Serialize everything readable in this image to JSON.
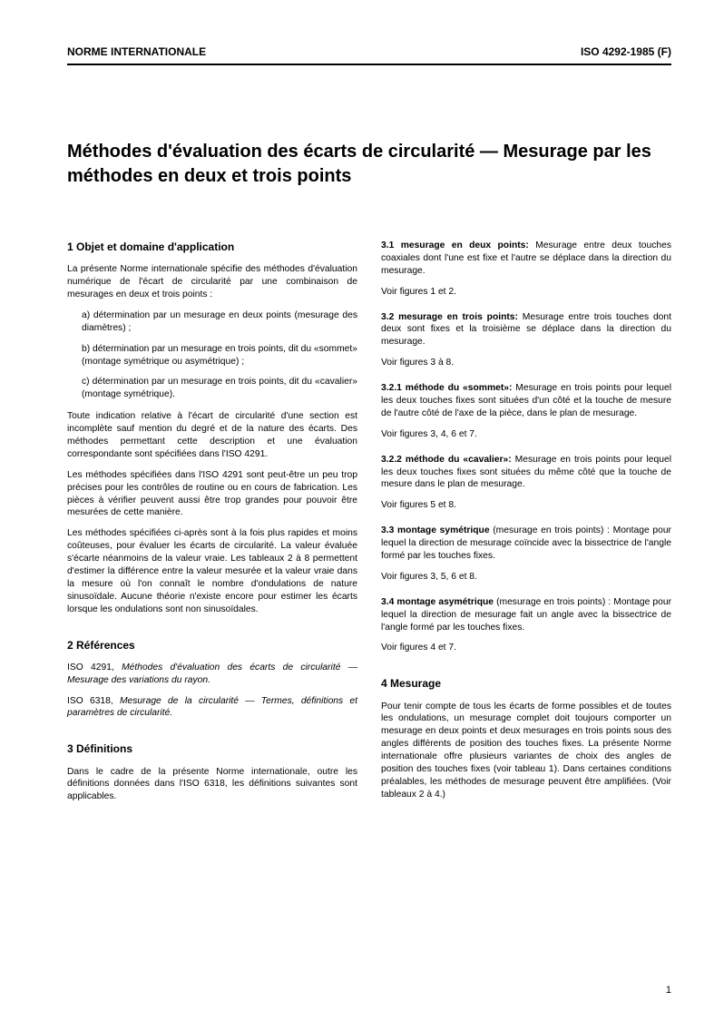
{
  "header": {
    "left": "NORME INTERNATIONALE",
    "right": "ISO 4292-1985 (F)"
  },
  "main_title": "Méthodes d'évaluation des écarts de circularité — Mesurage par les méthodes en deux et trois points",
  "left_col": {
    "section1": {
      "heading": "1   Objet et domaine d'application",
      "intro": "La présente Norme internationale spécifie des méthodes d'évaluation numérique de l'écart de circularité par une combinaison de mesurages en deux et trois points :",
      "item_a": "a)   détermination par un mesurage en deux points (mesurage des diamètres) ;",
      "item_b": "b)   détermination par un mesurage en trois points, dit du «sommet» (montage symétrique ou asymétrique) ;",
      "item_c": "c)   détermination par un mesurage en trois points, dit du «cavalier» (montage symétrique).",
      "p2": "Toute indication relative à l'écart de circularité d'une section est incomplète sauf mention du degré et de la nature des écarts. Des méthodes permettant cette description et une évaluation correspondante sont spécifiées dans l'ISO 4291.",
      "p3": "Les méthodes spécifiées dans l'ISO 4291 sont peut-être un peu trop précises pour les contrôles de routine ou en cours de fabrication. Les pièces à vérifier peuvent aussi être trop grandes pour pouvoir être mesurées de cette manière.",
      "p4": "Les méthodes spécifiées ci-après sont à la fois plus rapides et moins coûteuses, pour évaluer les écarts de circularité. La valeur évaluée s'écarte néanmoins de la valeur vraie. Les tableaux 2 à 8 permettent d'estimer la différence entre la valeur mesurée et la valeur vraie dans la mesure où l'on connaît le nombre d'ondulations de nature sinusoïdale. Aucune théorie n'existe encore pour estimer les écarts lorsque les ondulations sont non sinusoïdales."
    },
    "section2": {
      "heading": "2   Références",
      "ref1_a": "ISO 4291, ",
      "ref1_b": "Méthodes d'évaluation des écarts de circularité — Mesurage des variations du rayon.",
      "ref2_a": "ISO 6318, ",
      "ref2_b": "Mesurage de la circularité — Termes, définitions et paramètres de circularité."
    },
    "section3": {
      "heading": "3   Définitions",
      "p1": "Dans le cadre de la présente Norme internationale, outre les définitions données dans l'ISO 6318, les définitions suivantes sont applicables."
    }
  },
  "right_col": {
    "d31": {
      "runin": "3.1   mesurage en deux points:",
      "body": " Mesurage entre deux touches coaxiales dont l'une est fixe et l'autre se déplace dans la direction du mesurage.",
      "see": "Voir figures 1 et 2."
    },
    "d32": {
      "runin": "3.2   mesurage en trois points:",
      "body": " Mesurage entre trois touches dont deux sont fixes et la troisième se déplace dans la direction du mesurage.",
      "see": "Voir figures 3 à 8."
    },
    "d321": {
      "runin": "3.2.1   méthode du «sommet»:",
      "body": " Mesurage en trois points pour lequel les deux touches fixes sont situées d'un côté et la touche de mesure de l'autre côté de l'axe de la pièce, dans le plan de mesurage.",
      "see": "Voir figures 3, 4, 6 et 7."
    },
    "d322": {
      "runin": "3.2.2   méthode du «cavalier»:",
      "body": " Mesurage en trois points pour lequel les deux touches fixes sont situées du même côté que la touche de mesure dans le plan de mesurage.",
      "see": "Voir figures 5 et 8."
    },
    "d33": {
      "runin": "3.3   montage symétrique",
      "body": " (mesurage en trois points) : Montage pour lequel la direction de mesurage coïncide avec la bissectrice de l'angle formé par les touches fixes.",
      "see": "Voir figures 3, 5, 6 et 8."
    },
    "d34": {
      "runin": "3.4   montage asymétrique",
      "body": " (mesurage en trois points) : Montage pour lequel la direction de mesurage fait un angle avec la bissectrice de l'angle formé par les touches fixes.",
      "see": "Voir figures 4 et 7."
    },
    "section4": {
      "heading": "4   Mesurage",
      "p1": "Pour tenir compte de tous les écarts de forme possibles et de toutes les ondulations, un mesurage complet doit toujours comporter un mesurage en deux points et deux mesurages en trois points sous des angles différents de position des touches fixes. La présente Norme internationale offre plusieurs variantes de choix des angles de position des touches fixes (voir tableau 1). Dans certaines conditions préalables, les méthodes de mesurage peuvent être amplifiées. (Voir tableaux 2 à 4.)"
    }
  },
  "page_number": "1"
}
